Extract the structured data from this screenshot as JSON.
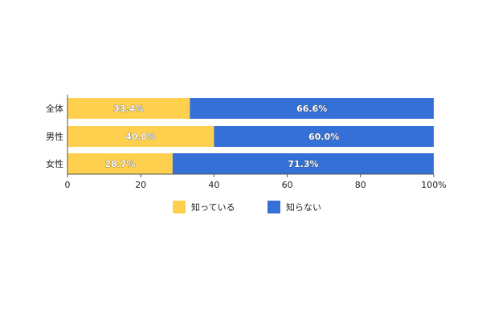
{
  "chart_data": {
    "type": "bar",
    "orientation": "horizontal",
    "stacked": true,
    "categories": [
      "全体",
      "男性",
      "女性"
    ],
    "series": [
      {
        "name": "知っている",
        "values": [
          33.4,
          40.0,
          28.7
        ],
        "labels": [
          "33.4%",
          "40.0%",
          "28.7%"
        ],
        "color": "#FFD04E"
      },
      {
        "name": "知らない",
        "values": [
          66.6,
          60.0,
          71.3
        ],
        "labels": [
          "66.6%",
          "60.0%",
          "71.3%"
        ],
        "color": "#3470D6"
      }
    ],
    "xlim": [
      0,
      100
    ],
    "x_ticks": [
      "0",
      "20",
      "40",
      "60",
      "80",
      "100%"
    ],
    "legend_position": "bottom",
    "grid": false
  }
}
